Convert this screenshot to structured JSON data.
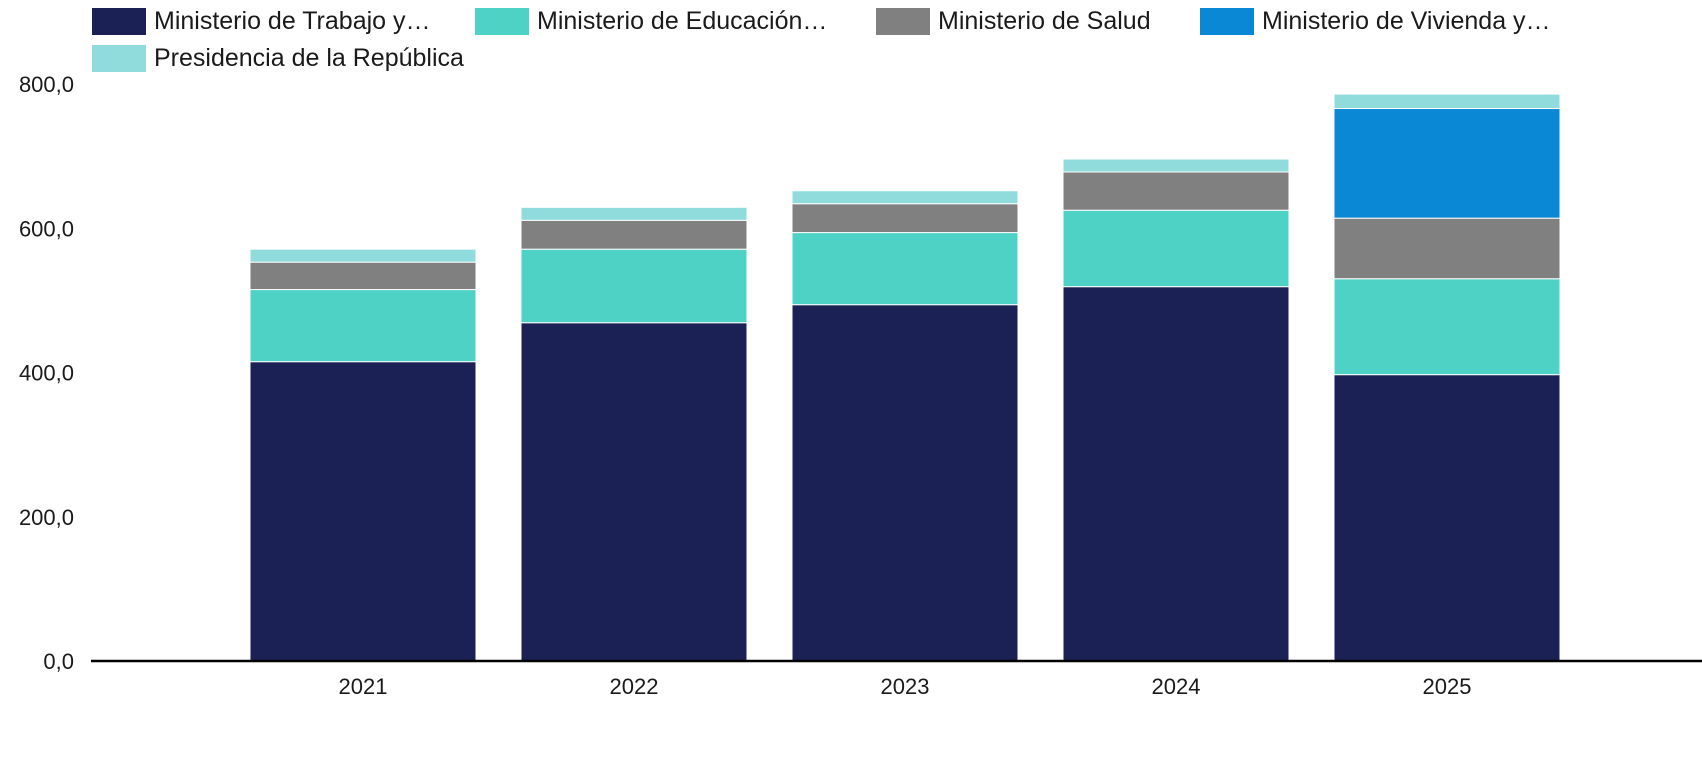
{
  "chart_data": {
    "type": "bar",
    "stacked": true,
    "categories": [
      "2021",
      "2022",
      "2023",
      "2024",
      "2025"
    ],
    "series": [
      {
        "name": "Ministerio de Trabajo y…",
        "color": "#1b2154",
        "values": [
          415,
          469,
          494,
          519,
          397
        ]
      },
      {
        "name": "Ministerio de Educación…",
        "color": "#4ed2c6",
        "values": [
          100,
          102,
          100,
          106,
          133
        ]
      },
      {
        "name": "Ministerio de Salud",
        "color": "#808080",
        "values": [
          38,
          40,
          40,
          53,
          84
        ]
      },
      {
        "name": "Ministerio de Vivienda y…",
        "color": "#0a88d6",
        "values": [
          0,
          0,
          0,
          0,
          152
        ]
      },
      {
        "name": "Presidencia de la República",
        "color": "#90dcdd",
        "values": [
          18,
          18,
          18,
          18,
          20
        ]
      }
    ],
    "y_ticks": [
      "0,0",
      "200,0",
      "400,0",
      "600,0",
      "800,0"
    ],
    "ylim": [
      0,
      800
    ],
    "grid": false,
    "legend_position": "top"
  }
}
